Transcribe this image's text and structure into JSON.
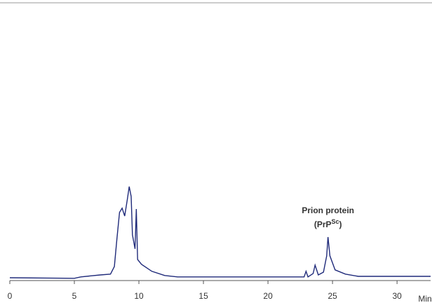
{
  "chart_data": {
    "type": "line",
    "x": [
      0,
      5,
      5.5,
      7,
      7.8,
      8.1,
      8.3,
      8.5,
      8.7,
      8.9,
      9.1,
      9.25,
      9.4,
      9.5,
      9.7,
      9.8,
      9.9,
      10.2,
      11,
      12,
      13,
      22.8,
      22.95,
      23.1,
      23.5,
      23.65,
      23.9,
      24.3,
      24.55,
      24.65,
      24.8,
      25.2,
      26,
      27,
      32.6
    ],
    "values": [
      1,
      0.8,
      1.3,
      2,
      2.3,
      5,
      15,
      24.3,
      25.8,
      23,
      28.8,
      33.5,
      30,
      16.3,
      11.3,
      25.5,
      7.5,
      5.8,
      3.3,
      1.8,
      1.3,
      1.3,
      3.3,
      1.3,
      2.5,
      5.5,
      2,
      3,
      8.8,
      15.5,
      8.8,
      3.8,
      2.3,
      1.5,
      1.5
    ],
    "color": "#1f2a7a",
    "xlim": [
      0,
      32.6
    ],
    "xticks": [
      0,
      5,
      10,
      15,
      20,
      25,
      30
    ],
    "ylim": [
      0,
      100
    ],
    "x_label": "Mins",
    "annotation": {
      "title": "Prion protein",
      "open": "(PrP",
      "sup": "Sc",
      "close": ")",
      "x": 24.65
    }
  }
}
